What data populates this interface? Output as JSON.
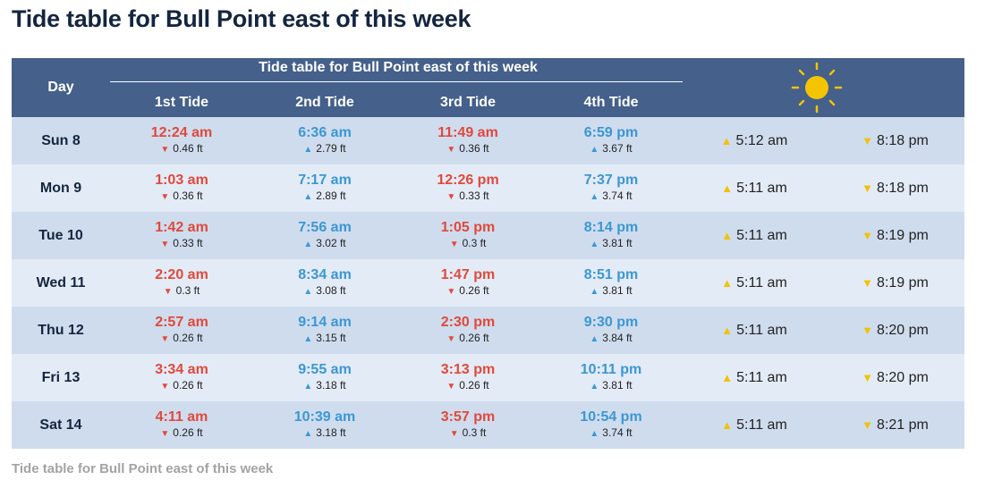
{
  "header": {
    "title": "Tide table for Bull Point east of this week"
  },
  "table": {
    "day_label": "Day",
    "group_label": "Tide table for Bull Point east of this week",
    "tide_labels": [
      "1st Tide",
      "2nd Tide",
      "3rd Tide",
      "4th Tide"
    ],
    "rows": [
      {
        "day": "Sun 8",
        "tides": [
          {
            "time": "12:24 am",
            "arrow": "▼",
            "height": "0.46 ft"
          },
          {
            "time": "6:36 am",
            "arrow": "▲",
            "height": "2.79 ft"
          },
          {
            "time": "11:49 am",
            "arrow": "▼",
            "height": "0.36 ft"
          },
          {
            "time": "6:59 pm",
            "arrow": "▲",
            "height": "3.67 ft"
          }
        ],
        "sunrise": {
          "arrow": "▲",
          "time": "5:12 am"
        },
        "sunset": {
          "arrow": "▼",
          "time": "8:18 pm"
        }
      },
      {
        "day": "Mon 9",
        "tides": [
          {
            "time": "1:03 am",
            "arrow": "▼",
            "height": "0.36 ft"
          },
          {
            "time": "7:17 am",
            "arrow": "▲",
            "height": "2.89 ft"
          },
          {
            "time": "12:26 pm",
            "arrow": "▼",
            "height": "0.33 ft"
          },
          {
            "time": "7:37 pm",
            "arrow": "▲",
            "height": "3.74 ft"
          }
        ],
        "sunrise": {
          "arrow": "▲",
          "time": "5:11 am"
        },
        "sunset": {
          "arrow": "▼",
          "time": "8:18 pm"
        }
      },
      {
        "day": "Tue 10",
        "tides": [
          {
            "time": "1:42 am",
            "arrow": "▼",
            "height": "0.33 ft"
          },
          {
            "time": "7:56 am",
            "arrow": "▲",
            "height": "3.02 ft"
          },
          {
            "time": "1:05 pm",
            "arrow": "▼",
            "height": "0.3 ft"
          },
          {
            "time": "8:14 pm",
            "arrow": "▲",
            "height": "3.81 ft"
          }
        ],
        "sunrise": {
          "arrow": "▲",
          "time": "5:11 am"
        },
        "sunset": {
          "arrow": "▼",
          "time": "8:19 pm"
        }
      },
      {
        "day": "Wed 11",
        "tides": [
          {
            "time": "2:20 am",
            "arrow": "▼",
            "height": "0.3 ft"
          },
          {
            "time": "8:34 am",
            "arrow": "▲",
            "height": "3.08 ft"
          },
          {
            "time": "1:47 pm",
            "arrow": "▼",
            "height": "0.26 ft"
          },
          {
            "time": "8:51 pm",
            "arrow": "▲",
            "height": "3.81 ft"
          }
        ],
        "sunrise": {
          "arrow": "▲",
          "time": "5:11 am"
        },
        "sunset": {
          "arrow": "▼",
          "time": "8:19 pm"
        }
      },
      {
        "day": "Thu 12",
        "tides": [
          {
            "time": "2:57 am",
            "arrow": "▼",
            "height": "0.26 ft"
          },
          {
            "time": "9:14 am",
            "arrow": "▲",
            "height": "3.15 ft"
          },
          {
            "time": "2:30 pm",
            "arrow": "▼",
            "height": "0.26 ft"
          },
          {
            "time": "9:30 pm",
            "arrow": "▲",
            "height": "3.84 ft"
          }
        ],
        "sunrise": {
          "arrow": "▲",
          "time": "5:11 am"
        },
        "sunset": {
          "arrow": "▼",
          "time": "8:20 pm"
        }
      },
      {
        "day": "Fri 13",
        "tides": [
          {
            "time": "3:34 am",
            "arrow": "▼",
            "height": "0.26 ft"
          },
          {
            "time": "9:55 am",
            "arrow": "▲",
            "height": "3.18 ft"
          },
          {
            "time": "3:13 pm",
            "arrow": "▼",
            "height": "0.26 ft"
          },
          {
            "time": "10:11 pm",
            "arrow": "▲",
            "height": "3.81 ft"
          }
        ],
        "sunrise": {
          "arrow": "▲",
          "time": "5:11 am"
        },
        "sunset": {
          "arrow": "▼",
          "time": "8:20 pm"
        }
      },
      {
        "day": "Sat 14",
        "tides": [
          {
            "time": "4:11 am",
            "arrow": "▼",
            "height": "0.26 ft"
          },
          {
            "time": "10:39 am",
            "arrow": "▲",
            "height": "3.18 ft"
          },
          {
            "time": "3:57 pm",
            "arrow": "▼",
            "height": "0.3 ft"
          },
          {
            "time": "10:54 pm",
            "arrow": "▲",
            "height": "3.74 ft"
          }
        ],
        "sunrise": {
          "arrow": "▲",
          "time": "5:11 am"
        },
        "sunset": {
          "arrow": "▼",
          "time": "8:21 pm"
        }
      }
    ]
  },
  "caption": "Tide table for Bull Point east of this week"
}
